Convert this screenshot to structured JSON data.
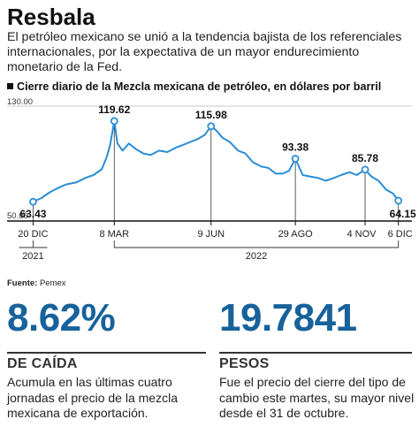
{
  "header": {
    "title": "Resbala",
    "intro": "El petróleo mexicano se unió a la tendencia bajista de los referenciales internacionales, por la expectativa de un mayor endurecimiento monetario de la Fed.",
    "subtitle": "Cierre diario de la Mezcla mexicana de petróleo, en dólares por barril"
  },
  "chart_data": {
    "type": "line",
    "ylim": [
      50,
      130
    ],
    "y_tick_labels": [
      "130.00",
      "50.00"
    ],
    "color": "#2a8dd6",
    "x_tick_labels": [
      "20 DIC",
      "8 MAR",
      "9 JUN",
      "29 AGO",
      "4 NOV",
      "6 DIC"
    ],
    "year_labels": [
      "2021",
      "2022"
    ],
    "annotations": [
      {
        "date": "2021-12-20",
        "label": "63.43",
        "value": 63.43
      },
      {
        "date": "2022-03-08",
        "label": "119.62",
        "value": 119.62
      },
      {
        "date": "2022-06-09",
        "label": "115.98",
        "value": 115.98
      },
      {
        "date": "2022-08-29",
        "label": "93.38",
        "value": 93.38
      },
      {
        "date": "2022-11-04",
        "label": "85.78",
        "value": 85.78
      },
      {
        "date": "2022-12-06",
        "label": "64.15",
        "value": 64.15
      }
    ],
    "series": [
      {
        "x": [
          "2021-12-20",
          "2021-12-28",
          "2022-01-05",
          "2022-01-13",
          "2022-01-21",
          "2022-01-31",
          "2022-02-08",
          "2022-02-16",
          "2022-02-24",
          "2022-03-01",
          "2022-03-04",
          "2022-03-08",
          "2022-03-11",
          "2022-03-16",
          "2022-03-22",
          "2022-03-29",
          "2022-04-05",
          "2022-04-12",
          "2022-04-20",
          "2022-04-28",
          "2022-05-06",
          "2022-05-13",
          "2022-05-20",
          "2022-05-27",
          "2022-06-03",
          "2022-06-09",
          "2022-06-14",
          "2022-06-20",
          "2022-06-27",
          "2022-07-05",
          "2022-07-12",
          "2022-07-19",
          "2022-07-27",
          "2022-08-03",
          "2022-08-10",
          "2022-08-17",
          "2022-08-23",
          "2022-08-29",
          "2022-09-05",
          "2022-09-12",
          "2022-09-20",
          "2022-09-27",
          "2022-10-05",
          "2022-10-12",
          "2022-10-20",
          "2022-10-27",
          "2022-11-04",
          "2022-11-10",
          "2022-11-17",
          "2022-11-24",
          "2022-12-01",
          "2022-12-06"
        ],
        "y": [
          63.43,
          66,
          70,
          73,
          75.5,
          77,
          80,
          82,
          86,
          95,
          103,
          119.62,
          104,
          99,
          104,
          100,
          97,
          96,
          99,
          98,
          101,
          103,
          105,
          107,
          110,
          115.98,
          113,
          108,
          105,
          99,
          97,
          91,
          88,
          87,
          83,
          83,
          85,
          93.38,
          82,
          81,
          80,
          78,
          80,
          82,
          84,
          82,
          85.78,
          81,
          78,
          72,
          69,
          64.15
        ]
      }
    ]
  },
  "footer": {
    "source_label": "Fuente:",
    "source_value": "Pemex"
  },
  "stats": [
    {
      "value": "8.62%",
      "label": "DE CAÍDA",
      "desc": "Acumula en las últimas cuatro jornadas el precio de la mezcla mexicana de exportación."
    },
    {
      "value": "19.7841",
      "label": "PESOS",
      "desc": "Fue el precio del cierre del tipo de cambio este martes, su mayor nivel desde el 31 de octubre."
    }
  ]
}
